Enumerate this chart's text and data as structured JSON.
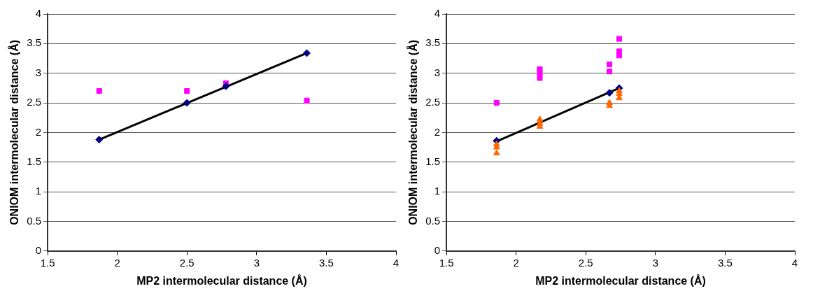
{
  "chart_data": [
    {
      "type": "scatter",
      "xlabel": "MP2 intermolecular distance (Å)",
      "ylabel": "ONIOM intermolecular distance (Å)",
      "xlim": [
        1.5,
        4
      ],
      "xticks": [
        1.5,
        2,
        2.5,
        3,
        3.5,
        4
      ],
      "ylim": [
        0,
        4
      ],
      "yticks": [
        0,
        0.5,
        1,
        1.5,
        2,
        2.5,
        3,
        3.5,
        4
      ],
      "grid": "y",
      "legend": false,
      "series": [
        {
          "type": "line",
          "color": "#000000",
          "marker": "none",
          "x": [
            1.87,
            3.36
          ],
          "values": [
            1.88,
            3.34
          ]
        },
        {
          "color": "#000080",
          "marker": "diamond",
          "x": [
            1.87,
            2.5,
            2.78,
            3.36
          ],
          "values": [
            1.88,
            2.5,
            2.78,
            3.34
          ]
        },
        {
          "color": "#ff00ff",
          "marker": "square",
          "x": [
            1.87,
            2.5,
            2.78,
            3.36
          ],
          "values": [
            2.7,
            2.7,
            2.83,
            2.54
          ]
        }
      ]
    },
    {
      "type": "scatter",
      "xlabel": "MP2 intermolecular distance (Å)",
      "ylabel": "ONIOM intermolecular distance (Å)",
      "xlim": [
        1.5,
        4
      ],
      "xticks": [
        1.5,
        2,
        2.5,
        3,
        3.5,
        4
      ],
      "ylim": [
        0,
        4
      ],
      "yticks": [
        0,
        0.5,
        1,
        1.5,
        2,
        2.5,
        3,
        3.5,
        4
      ],
      "grid": "y",
      "legend": false,
      "series": [
        {
          "type": "line",
          "color": "#000000",
          "marker": "none",
          "x": [
            1.86,
            2.74
          ],
          "values": [
            1.85,
            2.75
          ]
        },
        {
          "color": "#ff00ff",
          "marker": "square",
          "x": [
            1.86,
            2.17,
            2.17,
            2.17,
            2.67,
            2.67,
            2.74,
            2.74,
            2.74
          ],
          "values": [
            2.5,
            2.92,
            3.0,
            3.07,
            3.03,
            3.15,
            3.3,
            3.37,
            3.58
          ]
        },
        {
          "color": "#ff6600",
          "marker": "triangle",
          "x": [
            1.86,
            1.86,
            1.86,
            2.17,
            2.17,
            2.17,
            2.67,
            2.67,
            2.74,
            2.74,
            2.74
          ],
          "values": [
            1.65,
            1.75,
            1.8,
            2.1,
            2.15,
            2.22,
            2.45,
            2.5,
            2.58,
            2.65,
            2.7
          ]
        },
        {
          "color": "#000080",
          "marker": "diamond",
          "x": [
            1.86,
            2.67,
            2.74
          ],
          "values": [
            1.86,
            2.67,
            2.75
          ]
        }
      ]
    }
  ]
}
